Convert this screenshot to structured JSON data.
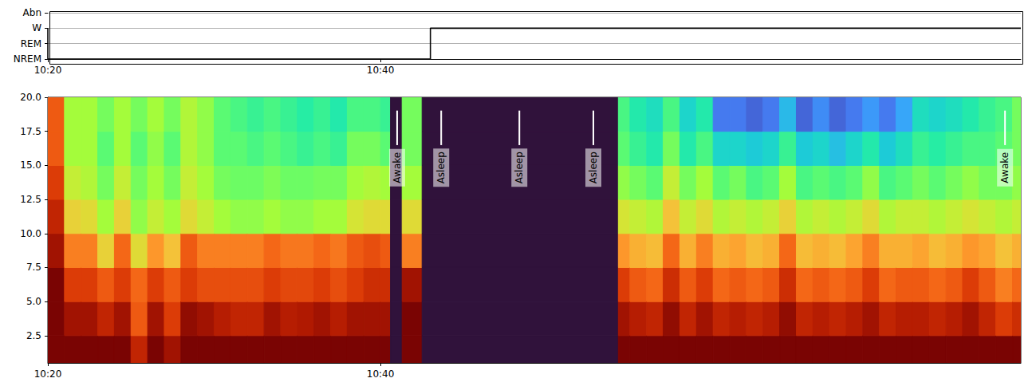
{
  "chart_data": [
    {
      "type": "step",
      "y_categories": [
        "NREM",
        "REM",
        "W",
        "Abn"
      ],
      "x": [
        0,
        23.0,
        56.0,
        58.5
      ],
      "values": [
        "W",
        "NREM",
        "W",
        "W"
      ],
      "color": "#000000",
      "xlim": [
        0,
        58.5
      ],
      "xticks": [
        {
          "value": 0,
          "label": "10:20"
        },
        {
          "value": 20,
          "label": "10:40"
        }
      ],
      "grid": true
    },
    {
      "type": "heatmap",
      "xlim": [
        0,
        58.5
      ],
      "xticks": [
        {
          "value": 0,
          "label": "10:20"
        },
        {
          "value": 20,
          "label": "10:40"
        }
      ],
      "ylim": [
        0.5,
        20
      ],
      "yticks": [
        2.5,
        {
          "value": 5,
          "label": "5.0"
        },
        7.5,
        {
          "value": 10,
          "label": "10.0"
        },
        12.5,
        {
          "value": 15,
          "label": "15.0"
        },
        17.5,
        {
          "value": 20,
          "label": "20.0"
        }
      ],
      "time_edges": [
        0,
        1,
        2,
        3,
        4,
        5,
        6,
        7,
        8,
        9,
        10,
        11,
        12,
        13,
        14,
        15,
        16,
        17,
        18,
        19,
        20,
        20.6,
        21.3,
        22.5,
        34.3,
        35,
        36,
        37,
        38,
        39,
        40,
        41,
        42,
        43,
        44,
        45,
        46,
        47,
        48,
        49,
        50,
        51,
        52,
        53,
        54,
        55,
        56,
        57,
        58,
        58.5
      ],
      "freq_edges": [
        0.5,
        2.5,
        5,
        7.5,
        10,
        12.5,
        15,
        17.5,
        20
      ],
      "color_range": [
        0,
        1
      ],
      "power": [
        [
          1,
          1,
          1,
          0.95,
          0.9,
          0.85,
          0.8,
          0.8
        ],
        [
          1,
          0.95,
          0.85,
          0.75,
          0.62,
          0.55,
          0.5,
          0.5
        ],
        [
          1,
          0.95,
          0.85,
          0.75,
          0.6,
          0.52,
          0.5,
          0.5
        ],
        [
          1,
          0.9,
          0.8,
          0.62,
          0.5,
          0.45,
          0.42,
          0.45
        ],
        [
          1,
          0.95,
          0.85,
          0.78,
          0.62,
          0.55,
          0.5,
          0.5
        ],
        [
          0.9,
          0.8,
          0.78,
          0.6,
          0.48,
          0.45,
          0.42,
          0.45
        ],
        [
          1,
          0.95,
          0.85,
          0.72,
          0.55,
          0.5,
          0.48,
          0.5
        ],
        [
          0.95,
          0.85,
          0.8,
          0.65,
          0.5,
          0.45,
          0.42,
          0.45
        ],
        [
          1,
          0.97,
          0.85,
          0.8,
          0.6,
          0.55,
          0.52,
          0.52
        ],
        [
          1,
          0.95,
          0.82,
          0.75,
          0.55,
          0.5,
          0.48,
          0.48
        ],
        [
          1,
          0.92,
          0.82,
          0.75,
          0.5,
          0.45,
          0.42,
          0.42
        ],
        [
          1,
          0.9,
          0.82,
          0.75,
          0.48,
          0.44,
          0.42,
          0.4
        ],
        [
          1,
          0.9,
          0.82,
          0.75,
          0.48,
          0.44,
          0.4,
          0.38
        ],
        [
          1,
          0.95,
          0.85,
          0.78,
          0.5,
          0.46,
          0.42,
          0.4
        ],
        [
          1,
          0.92,
          0.83,
          0.76,
          0.48,
          0.44,
          0.4,
          0.38
        ],
        [
          1,
          0.93,
          0.83,
          0.76,
          0.48,
          0.44,
          0.38,
          0.36
        ],
        [
          1,
          0.95,
          0.85,
          0.78,
          0.5,
          0.45,
          0.4,
          0.38
        ],
        [
          1,
          0.92,
          0.82,
          0.76,
          0.5,
          0.45,
          0.38,
          0.35
        ],
        [
          1,
          0.95,
          0.85,
          0.8,
          0.58,
          0.5,
          0.45,
          0.4
        ],
        [
          1,
          0.95,
          0.88,
          0.82,
          0.6,
          0.52,
          0.45,
          0.4
        ],
        [
          1,
          0.95,
          0.88,
          0.8,
          0.6,
          0.5,
          0.42,
          0.38
        ],
        [
          0,
          0,
          0,
          0,
          0,
          0,
          0,
          0
        ],
        [
          1,
          1,
          0.95,
          0.75,
          0.6,
          0.5,
          0.45,
          0.45
        ],
        [
          0,
          0,
          0,
          0,
          0,
          0,
          0,
          0
        ],
        [
          1,
          0.95,
          0.85,
          0.72,
          0.58,
          0.48,
          0.42,
          0.4
        ],
        [
          1,
          0.92,
          0.8,
          0.68,
          0.55,
          0.45,
          0.38,
          0.35
        ],
        [
          1,
          0.9,
          0.78,
          0.66,
          0.52,
          0.42,
          0.35,
          0.32
        ],
        [
          1,
          0.97,
          0.88,
          0.78,
          0.65,
          0.55,
          0.45,
          0.4
        ],
        [
          1,
          0.9,
          0.8,
          0.68,
          0.55,
          0.45,
          0.35,
          0.3
        ],
        [
          1,
          0.95,
          0.85,
          0.75,
          0.6,
          0.5,
          0.4,
          0.35
        ],
        [
          1,
          0.9,
          0.78,
          0.68,
          0.52,
          0.42,
          0.3,
          0.15
        ],
        [
          1,
          0.92,
          0.8,
          0.7,
          0.55,
          0.45,
          0.3,
          0.15
        ],
        [
          1,
          0.9,
          0.78,
          0.66,
          0.52,
          0.4,
          0.28,
          0.12
        ],
        [
          1,
          0.92,
          0.8,
          0.68,
          0.55,
          0.42,
          0.3,
          0.15
        ],
        [
          1,
          0.97,
          0.88,
          0.78,
          0.62,
          0.5,
          0.38,
          0.25
        ],
        [
          1,
          0.9,
          0.78,
          0.66,
          0.52,
          0.4,
          0.28,
          0.12
        ],
        [
          1,
          0.92,
          0.8,
          0.68,
          0.55,
          0.42,
          0.3,
          0.18
        ],
        [
          1,
          0.9,
          0.78,
          0.66,
          0.52,
          0.4,
          0.26,
          0.12
        ],
        [
          1,
          0.92,
          0.8,
          0.7,
          0.55,
          0.42,
          0.3,
          0.15
        ],
        [
          1,
          0.95,
          0.85,
          0.75,
          0.6,
          0.48,
          0.35,
          0.2
        ],
        [
          1,
          0.9,
          0.78,
          0.68,
          0.52,
          0.4,
          0.28,
          0.15
        ],
        [
          1,
          0.92,
          0.8,
          0.68,
          0.55,
          0.42,
          0.32,
          0.22
        ],
        [
          1,
          0.92,
          0.8,
          0.7,
          0.55,
          0.45,
          0.38,
          0.32
        ],
        [
          1,
          0.9,
          0.78,
          0.66,
          0.52,
          0.42,
          0.36,
          0.3
        ],
        [
          1,
          0.92,
          0.8,
          0.68,
          0.55,
          0.45,
          0.38,
          0.32
        ],
        [
          1,
          0.95,
          0.85,
          0.72,
          0.58,
          0.48,
          0.4,
          0.35
        ],
        [
          1,
          0.9,
          0.8,
          0.7,
          0.55,
          0.45,
          0.4,
          0.38
        ],
        [
          1,
          0.85,
          0.75,
          0.65,
          0.52,
          0.45,
          0.42,
          0.4
        ],
        [
          1,
          0.88,
          0.78,
          0.68,
          0.55,
          0.48,
          0.45,
          0.45
        ]
      ],
      "annotations": [
        {
          "x": 21.0,
          "text": "Awake"
        },
        {
          "x": 23.65,
          "text": "Asleep"
        },
        {
          "x": 28.35,
          "text": "Asleep"
        },
        {
          "x": 32.8,
          "text": "Asleep"
        },
        {
          "x": 57.55,
          "text": "Awake"
        }
      ]
    }
  ]
}
